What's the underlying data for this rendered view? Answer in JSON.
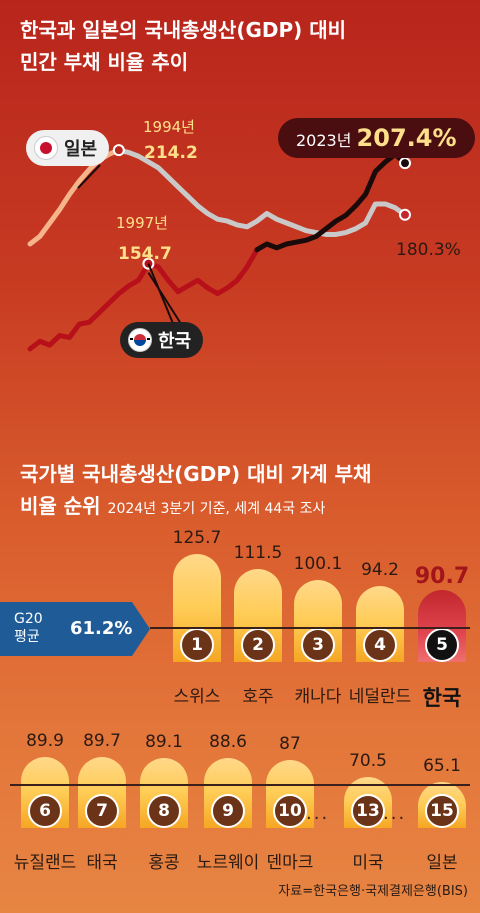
{
  "section1": {
    "title_line1": "한국과 일본의 국내총생산(GDP) 대비",
    "title_line2": "민간 부채 비율 추이",
    "japan_label": "일본",
    "korea_label": "한국",
    "annotations": {
      "japan_peak_year": "1994년",
      "japan_peak_value": "214.2",
      "korea_peak_year": "1997년",
      "korea_peak_value": "154.7",
      "korea_2023_year": "2023년",
      "korea_2023_value": "207.4%",
      "japan_latest_value": "180.3%"
    }
  },
  "section2": {
    "title_line1": "국가별 국내총생산(GDP) 대비 가계 부채",
    "title_line2": "비율 순위",
    "note": "2024년 3분기 기준, 세계 44국 조사",
    "g20_label_line1": "G20",
    "g20_label_line2": "평균",
    "g20_value": "61.2%",
    "source": "자료=한국은행·국제결제은행(BIS)"
  },
  "colors": {
    "japan_line": "#c9c9c9",
    "japan_line_early": "#f5b48a",
    "korea_line": "#b8101a",
    "korea_line_late": "#1a0a0a",
    "bar": "#ffcc55",
    "korea_bar": "#c2272d",
    "g20": "#1f5c97"
  },
  "chart_data": [
    {
      "type": "line",
      "title": "한국과 일본의 국내총생산(GDP) 대비 민간 부채 비율 추이",
      "series": [
        {
          "name": "일본",
          "points": [
            {
              "x": 1985,
              "y": 165
            },
            {
              "x": 1986,
              "y": 169
            },
            {
              "x": 1987,
              "y": 176
            },
            {
              "x": 1988,
              "y": 183
            },
            {
              "x": 1989,
              "y": 191
            },
            {
              "x": 1990,
              "y": 198
            },
            {
              "x": 1991,
              "y": 204
            },
            {
              "x": 1992,
              "y": 209
            },
            {
              "x": 1993,
              "y": 212
            },
            {
              "x": 1994,
              "y": 214.2
            },
            {
              "x": 1995,
              "y": 213
            },
            {
              "x": 1996,
              "y": 211
            },
            {
              "x": 1997,
              "y": 208
            },
            {
              "x": 1998,
              "y": 205
            },
            {
              "x": 1999,
              "y": 200
            },
            {
              "x": 2000,
              "y": 195
            },
            {
              "x": 2001,
              "y": 190
            },
            {
              "x": 2002,
              "y": 185
            },
            {
              "x": 2003,
              "y": 181
            },
            {
              "x": 2004,
              "y": 178
            },
            {
              "x": 2005,
              "y": 177
            },
            {
              "x": 2006,
              "y": 175
            },
            {
              "x": 2007,
              "y": 174
            },
            {
              "x": 2008,
              "y": 177
            },
            {
              "x": 2009,
              "y": 181
            },
            {
              "x": 2010,
              "y": 178
            },
            {
              "x": 2011,
              "y": 176
            },
            {
              "x": 2012,
              "y": 174
            },
            {
              "x": 2013,
              "y": 172
            },
            {
              "x": 2014,
              "y": 171
            },
            {
              "x": 2015,
              "y": 170
            },
            {
              "x": 2016,
              "y": 170
            },
            {
              "x": 2017,
              "y": 171
            },
            {
              "x": 2018,
              "y": 173
            },
            {
              "x": 2019,
              "y": 176
            },
            {
              "x": 2020,
              "y": 186
            },
            {
              "x": 2021,
              "y": 186
            },
            {
              "x": 2022,
              "y": 184
            },
            {
              "x": 2023,
              "y": 180.3
            }
          ]
        },
        {
          "name": "한국",
          "points": [
            {
              "x": 1985,
              "y": 110
            },
            {
              "x": 1986,
              "y": 114
            },
            {
              "x": 1987,
              "y": 112
            },
            {
              "x": 1988,
              "y": 117
            },
            {
              "x": 1989,
              "y": 116
            },
            {
              "x": 1990,
              "y": 123
            },
            {
              "x": 1991,
              "y": 124
            },
            {
              "x": 1992,
              "y": 129
            },
            {
              "x": 1993,
              "y": 134
            },
            {
              "x": 1994,
              "y": 139
            },
            {
              "x": 1995,
              "y": 143
            },
            {
              "x": 1996,
              "y": 146
            },
            {
              "x": 1997,
              "y": 154.7
            },
            {
              "x": 1998,
              "y": 153
            },
            {
              "x": 1999,
              "y": 146
            },
            {
              "x": 2000,
              "y": 140
            },
            {
              "x": 2001,
              "y": 143
            },
            {
              "x": 2002,
              "y": 146
            },
            {
              "x": 2003,
              "y": 142
            },
            {
              "x": 2004,
              "y": 139
            },
            {
              "x": 2005,
              "y": 142
            },
            {
              "x": 2006,
              "y": 146
            },
            {
              "x": 2007,
              "y": 153
            },
            {
              "x": 2008,
              "y": 162
            },
            {
              "x": 2009,
              "y": 165
            },
            {
              "x": 2010,
              "y": 163
            },
            {
              "x": 2011,
              "y": 165
            },
            {
              "x": 2012,
              "y": 166
            },
            {
              "x": 2013,
              "y": 167
            },
            {
              "x": 2014,
              "y": 169
            },
            {
              "x": 2015,
              "y": 173
            },
            {
              "x": 2016,
              "y": 177
            },
            {
              "x": 2017,
              "y": 180
            },
            {
              "x": 2018,
              "y": 185
            },
            {
              "x": 2019,
              "y": 191
            },
            {
              "x": 2020,
              "y": 203
            },
            {
              "x": 2021,
              "y": 208
            },
            {
              "x": 2022,
              "y": 212
            },
            {
              "x": 2023,
              "y": 207.4
            }
          ]
        }
      ],
      "xlim": [
        1985,
        2023
      ],
      "ylim": [
        100,
        230
      ],
      "grid": false,
      "legend": "inline labels"
    },
    {
      "type": "bar",
      "title": "국가별 국내총생산(GDP) 대비 가계 부채 비율 순위",
      "subtitle": "2024년 3분기 기준, 세계 44국 조사",
      "bars": [
        {
          "rank": 1,
          "country": "스위스",
          "value": 125.7
        },
        {
          "rank": 2,
          "country": "호주",
          "value": 111.5
        },
        {
          "rank": 3,
          "country": "캐나다",
          "value": 100.1
        },
        {
          "rank": 4,
          "country": "네덜란드",
          "value": 94.2
        },
        {
          "rank": 5,
          "country": "한국",
          "value": 90.7,
          "highlight": true
        },
        {
          "rank": 6,
          "country": "뉴질랜드",
          "value": 89.9
        },
        {
          "rank": 7,
          "country": "태국",
          "value": 89.7
        },
        {
          "rank": 8,
          "country": "홍콩",
          "value": 89.1
        },
        {
          "rank": 9,
          "country": "노르웨이",
          "value": 88.6
        },
        {
          "rank": 10,
          "country": "덴마크",
          "value": 87
        },
        {
          "rank": 13,
          "country": "미국",
          "value": 70.5
        },
        {
          "rank": 15,
          "country": "일본",
          "value": 65.1
        }
      ],
      "display_values": [
        "125.7",
        "111.5",
        "100.1",
        "94.2",
        "90.7",
        "89.9",
        "89.7",
        "89.1",
        "88.6",
        "87",
        "70.5",
        "65.1"
      ],
      "reference_line": {
        "label": "G20 평균",
        "value": 61.2
      },
      "ellipsis": "···"
    }
  ]
}
